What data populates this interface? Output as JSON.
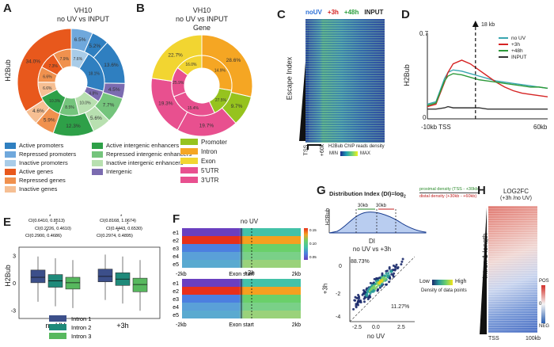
{
  "panels": {
    "A": {
      "letter": "A",
      "title": "VH10",
      "subtitle": "no UV vs INPUT",
      "ylabel": "H2Bub",
      "outer_labels": [
        "6.5%",
        "5.2%",
        "13.6%",
        "4.5%",
        "7.7%",
        "5.6%",
        "12.3%",
        "5.9%",
        "4.6%",
        "34.0%"
      ],
      "inner_labels": [
        "7.6%",
        "18.1%",
        "4.8%",
        "10.0%",
        "8.5%",
        "10.3%",
        "6.6%",
        "6.6%",
        "7.3%",
        "7.9%"
      ],
      "legend_col1": [
        {
          "label": "Active promoters",
          "color": "#2f7fc0"
        },
        {
          "label": "Repressed promoters",
          "color": "#6fa8dc"
        },
        {
          "label": "Inactive promoters",
          "color": "#a9cce8"
        },
        {
          "label": "Active genes",
          "color": "#e8581c"
        },
        {
          "label": "Repressed genes",
          "color": "#f0914e"
        },
        {
          "label": "Inactive genes",
          "color": "#f6bf93"
        }
      ],
      "legend_col2": [
        {
          "label": "Active intergenic enhancers",
          "color": "#2ea048"
        },
        {
          "label": "Repressed intergenic enhancers",
          "color": "#74c47c"
        },
        {
          "label": "Inactive intergenic enhancers",
          "color": "#b8e0b0"
        },
        {
          "label": "Intergenic",
          "color": "#7b6bb0"
        }
      ]
    },
    "B": {
      "letter": "B",
      "title": "VH10",
      "subtitle": "no UV vs INPUT",
      "subtitle2": "Gene",
      "outer_labels": [
        "28.6%",
        "9.7%",
        "19.7%",
        "19.3%",
        "22.7%"
      ],
      "inner_labels": [
        "14.9%",
        "27.5%",
        "15.4%",
        "25.9%",
        "16.0%"
      ],
      "legend": [
        {
          "label": "Promoter",
          "color": "#96c31e"
        },
        {
          "label": "Intron",
          "color": "#f5a623"
        },
        {
          "label": "Exon",
          "color": "#f2d531"
        },
        {
          "label": "5'UTR",
          "color": "#e8508f"
        },
        {
          "label": "3'UTR",
          "color": "#e8508f"
        }
      ]
    },
    "C": {
      "letter": "C",
      "cols": [
        {
          "label": "noUV",
          "color": "#2b6fd6"
        },
        {
          "label": "+3h",
          "color": "#d32020"
        },
        {
          "label": "+48h",
          "color": "#2a9d3c"
        },
        {
          "label": "INPUT",
          "color": "#222222"
        }
      ],
      "ylabel": "Escape Index",
      "tick_left": "TSS",
      "tick_right": "+60k",
      "cbar_title": "H2Bub ChIP reads density",
      "cbar_min": "MIN",
      "cbar_max": "MAX"
    },
    "D": {
      "letter": "D",
      "ylabel": "H2Bub",
      "y_top": "0.7",
      "y_zero": "0",
      "x_left": "-10kb TSS",
      "x_right": "60kb",
      "arrow_label": "18 kb",
      "legend": [
        {
          "label": "no UV",
          "color": "#3aa6b0"
        },
        {
          "label": "+3h",
          "color": "#d62424"
        },
        {
          "label": "+48h",
          "color": "#2d9a3a"
        },
        {
          "label": "INPUT",
          "color": "#333333"
        }
      ]
    },
    "E": {
      "letter": "E",
      "ylabel": "H2Bub",
      "y_ticks": [
        "3",
        "0",
        "-3"
      ],
      "groups": [
        "no UV",
        "+3h"
      ],
      "ci_nouv": [
        "CI(0.6410, 0.8513)",
        "CI(0.2226, 0.4610)",
        "CI(0.2900, 0.4686)"
      ],
      "ci_3h": [
        "CI(0.8168, 1.0674)",
        "CI(0.4443, 0.6530)",
        "CI(0.2974, 0.4895)"
      ],
      "star": "*",
      "legend": [
        {
          "label": "Intron 1",
          "color": "#3c4f8a"
        },
        {
          "label": "Intron 2",
          "color": "#1f8a7a"
        },
        {
          "label": "Intron 3",
          "color": "#57b85e"
        }
      ]
    },
    "F": {
      "letter": "F",
      "title_top": "no UV",
      "title_bottom": "+3h",
      "rows": [
        "e1",
        "e2",
        "e3",
        "e4",
        "e5"
      ],
      "x_left": "-2kb",
      "x_mid": "Exon start",
      "x_right": "2kb",
      "cbar_ticks": [
        "0.15",
        "0.10",
        "0.05"
      ]
    },
    "G": {
      "letter": "G",
      "formula_label": "Distribution Index (DI)=log",
      "formula_sub": "2",
      "numerator": "proximal density (TSS - +30kb)",
      "denominator": "distal density (+30kb - +60kb)",
      "seg1": "30kb",
      "seg2": "30kb",
      "mini_ylabel": "H2Bub",
      "scatter_title": "DI",
      "scatter_subtitle": "no UV vs +3h",
      "pct_upper": "88.73%",
      "pct_lower": "11.27%",
      "xlabel": "no UV",
      "ylabel": "+3h",
      "x_ticks": [
        "-2.5",
        "0.0",
        "2.5"
      ],
      "y_ticks": [
        "0",
        "-2",
        "-4"
      ],
      "density_low": "Low",
      "density_high": "High",
      "density_caption": "Density of data points"
    },
    "H": {
      "letter": "H",
      "title": "LOG2FC",
      "subtitle": "(+3h /no UV)",
      "ylabel": "Intron 1 length",
      "x_left": "TSS",
      "x_right": "100kb",
      "cbar_pos": "POS",
      "cbar_zero": "0",
      "cbar_neg": "NEG"
    }
  },
  "chart_data": [
    {
      "type": "pie",
      "panel": "A",
      "title": "VH10",
      "subtitle": "no UV vs INPUT",
      "outer_values": [
        6.5,
        5.2,
        13.6,
        4.5,
        7.7,
        5.6,
        12.3,
        5.9,
        4.6,
        34.0
      ],
      "inner_values": [
        7.6,
        18.1,
        4.8,
        10.0,
        8.5,
        10.3,
        6.6,
        6.6,
        7.3,
        7.9
      ]
    },
    {
      "type": "pie",
      "panel": "B",
      "title": "VH10",
      "subtitle": "no UV vs INPUT",
      "categories": [
        "Intron",
        "Promoter",
        "5'UTR",
        "3'UTR",
        "Exon"
      ],
      "outer_values": [
        28.6,
        9.7,
        19.7,
        19.3,
        22.7
      ],
      "inner_values": [
        27.5,
        15.4,
        25.9,
        16.0,
        14.9
      ]
    },
    {
      "type": "line",
      "panel": "D",
      "ylabel": "H2Bub",
      "ylim": [
        0,
        0.7
      ],
      "x": [
        -10,
        -5,
        0,
        2,
        5,
        10,
        15,
        20,
        25,
        30,
        35,
        40,
        45,
        50,
        55,
        60
      ],
      "series": [
        {
          "name": "no UV",
          "values": [
            0.12,
            0.14,
            0.33,
            0.38,
            0.4,
            0.39,
            0.37,
            0.35,
            0.33,
            0.31,
            0.3,
            0.29,
            0.28,
            0.27,
            0.26,
            0.25
          ]
        },
        {
          "name": "+3h",
          "values": [
            0.1,
            0.12,
            0.3,
            0.38,
            0.45,
            0.48,
            0.45,
            0.4,
            0.35,
            0.3,
            0.26,
            0.23,
            0.21,
            0.2,
            0.19,
            0.18
          ]
        },
        {
          "name": "+48h",
          "values": [
            0.11,
            0.13,
            0.31,
            0.35,
            0.37,
            0.36,
            0.34,
            0.32,
            0.31,
            0.3,
            0.29,
            0.28,
            0.27,
            0.26,
            0.26,
            0.25
          ]
        },
        {
          "name": "INPUT",
          "values": [
            0.08,
            0.08,
            0.09,
            0.1,
            0.09,
            0.09,
            0.09,
            0.09,
            0.08,
            0.08,
            0.08,
            0.08,
            0.08,
            0.08,
            0.08,
            0.08
          ]
        }
      ]
    },
    {
      "type": "bar",
      "panel": "E",
      "note_type": "box",
      "categories": [
        "no UV",
        "+3h"
      ],
      "series": [
        {
          "name": "Intron 1",
          "values": [
            {
              "q1": 0.1,
              "median": 0.7,
              "q3": 1.5,
              "min": -2.0,
              "max": 3.0
            },
            {
              "q1": 0.2,
              "median": 0.8,
              "q3": 1.6,
              "min": -1.8,
              "max": 3.2
            }
          ]
        },
        {
          "name": "Intron 2",
          "values": [
            {
              "q1": -0.4,
              "median": 0.3,
              "q3": 1.0,
              "min": -2.5,
              "max": 2.8
            },
            {
              "q1": -0.2,
              "median": 0.5,
              "q3": 1.2,
              "min": -2.2,
              "max": 3.0
            }
          ]
        },
        {
          "name": "Intron 3",
          "values": [
            {
              "q1": -0.6,
              "median": 0.1,
              "q3": 0.7,
              "min": -2.7,
              "max": 2.6
            },
            {
              "q1": -0.9,
              "median": -0.1,
              "q3": 0.6,
              "min": -3.0,
              "max": 2.6
            }
          ]
        }
      ],
      "ylim": [
        -3.5,
        3.5
      ]
    },
    {
      "type": "scatter",
      "panel": "G",
      "title": "DI",
      "subtitle": "no UV vs +3h",
      "xlabel": "no UV",
      "ylabel": "+3h",
      "upper_fraction": 88.73,
      "lower_fraction": 11.27
    }
  ]
}
